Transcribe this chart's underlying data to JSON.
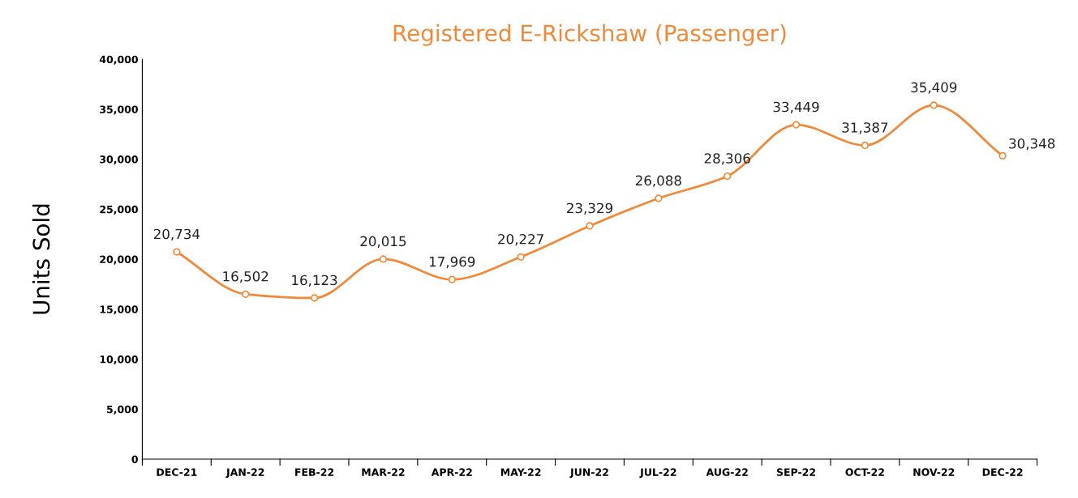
{
  "chart_data": {
    "type": "line",
    "title": "Registered E-Rickshaw (Passenger)",
    "ylabel": "Units Sold",
    "categories": [
      "DEC-21",
      "JAN-22",
      "FEB-22",
      "MAR-22",
      "APR-22",
      "MAY-22",
      "JUN-22",
      "JUL-22",
      "AUG-22",
      "SEP-22",
      "OCT-22",
      "NOV-22",
      "DEC-22"
    ],
    "series": [
      {
        "color": "#f08a3a",
        "values": [
          20734,
          16502,
          16123,
          20015,
          17969,
          20227,
          23329,
          26088,
          28306,
          33449,
          31387,
          35409,
          30348
        ]
      }
    ],
    "ylim": [
      0,
      40000
    ],
    "yticks": [
      {
        "value": 0,
        "label": "0"
      },
      {
        "value": 5000,
        "label": "5,000"
      },
      {
        "value": 10000,
        "label": "10,000"
      },
      {
        "value": 15000,
        "label": "15,000"
      },
      {
        "value": 20000,
        "label": "20,000"
      },
      {
        "value": 25000,
        "label": "25,000"
      },
      {
        "value": 30000,
        "label": "30,000"
      },
      {
        "value": 35000,
        "label": "35,000"
      },
      {
        "value": 40000,
        "label": "40,000"
      }
    ],
    "value_labels": [
      "20,734",
      "16,502",
      "16,123",
      "20,015",
      "17,969",
      "20,227",
      "23,329",
      "26,088",
      "28,306",
      "33,449",
      "31,387",
      "35,409",
      "30,348"
    ],
    "marker": "circle",
    "line_style": "solid",
    "grid": false,
    "legend": false
  }
}
